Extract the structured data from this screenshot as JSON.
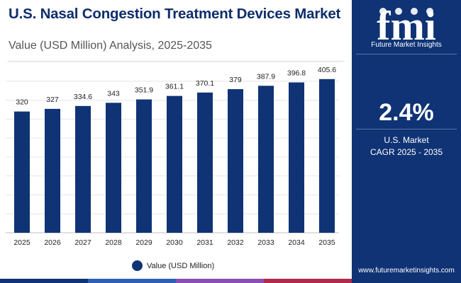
{
  "header": {
    "title": "U.S. Nasal Congestion Treatment Devices Market",
    "subtitle": "Value (USD Million) Analysis, 2025-2035"
  },
  "chart_data": {
    "type": "bar",
    "categories": [
      "2025",
      "2026",
      "2027",
      "2028",
      "2029",
      "2030",
      "2031",
      "2032",
      "2033",
      "2034",
      "2035"
    ],
    "series": [
      {
        "name": "Value (USD Million)",
        "values": [
          320,
          327,
          334.6,
          343,
          351.9,
          361.1,
          370.1,
          379,
          387.9,
          396.8,
          405.6
        ],
        "labels": [
          "320",
          "327",
          "334.6",
          "343",
          "351.9",
          "361.1",
          "370.1",
          "379",
          "387.9",
          "396.8",
          "405.6"
        ]
      }
    ],
    "ylim": [
      0,
      450
    ],
    "grid": true,
    "legend": "bottom-center",
    "xlabel": "",
    "ylabel": ""
  },
  "legend": {
    "label": "Value (USD Million)"
  },
  "sidebar": {
    "logo_text": "fmi",
    "logo_subtitle": "Future Market Insights",
    "cagr_value": "2.4%",
    "cagr_label_line1": "U.S. Market",
    "cagr_label_line2": "CAGR 2025 - 2035",
    "website": "www.futuremarketinsights.com"
  },
  "colors": {
    "bar": "#0f3375",
    "panel": "#0f3375",
    "title": "#0e2e6b",
    "bottom_bar": [
      "#0f3375",
      "#2f5fb3",
      "#8a4fb0",
      "#b02a4a"
    ]
  }
}
